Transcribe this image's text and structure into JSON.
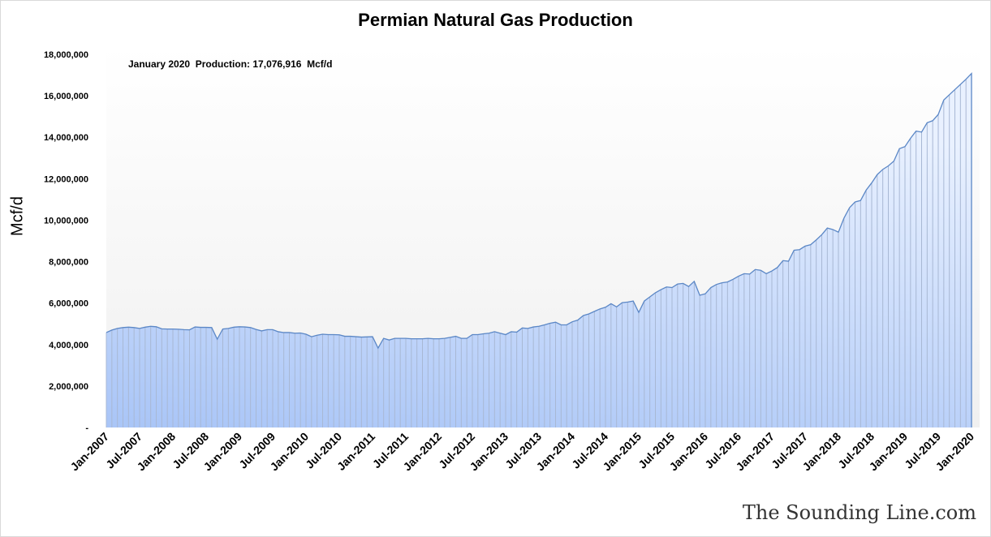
{
  "chart_data": {
    "type": "area",
    "title": "Permian Natural Gas Production",
    "ylabel": "Mcf/d",
    "xlabel": "",
    "annotation": "January 2020  Production: 17,076,916  Mcf/d",
    "ylim": [
      0,
      18000000
    ],
    "yticks": [
      "-",
      "2,000,000",
      "4,000,000",
      "6,000,000",
      "8,000,000",
      "10,000,000",
      "12,000,000",
      "14,000,000",
      "16,000,000",
      "18,000,000"
    ],
    "xticks": [
      "Jan-2007",
      "Jul-2007",
      "Jan-2008",
      "Jul-2008",
      "Jan-2009",
      "Jul-2009",
      "Jan-2010",
      "Jul-2010",
      "Jan-2011",
      "Jul-2011",
      "Jan-2012",
      "Jul-2012",
      "Jan-2013",
      "Jul-2013",
      "Jan-2014",
      "Jul-2014",
      "Jan-2015",
      "Jul-2015",
      "Jan-2016",
      "Jul-2016",
      "Jan-2017",
      "Jul-2017",
      "Jan-2018",
      "Jul-2018",
      "Jan-2019",
      "Jul-2019",
      "Jan-2020"
    ],
    "x_start": "Jan-2007",
    "x_end": "Jan-2020",
    "frequency": "monthly",
    "grid": false,
    "legend": "none",
    "colors": {
      "line": "#5b87c6",
      "fill_bottom": "#a9c5f7",
      "fill_top": "#e9f1ff"
    },
    "values": [
      4580000,
      4700000,
      4780000,
      4820000,
      4840000,
      4820000,
      4780000,
      4840000,
      4880000,
      4860000,
      4760000,
      4750000,
      4750000,
      4740000,
      4720000,
      4710000,
      4850000,
      4830000,
      4830000,
      4820000,
      4260000,
      4750000,
      4780000,
      4840000,
      4860000,
      4850000,
      4820000,
      4730000,
      4660000,
      4720000,
      4720000,
      4620000,
      4580000,
      4580000,
      4550000,
      4560000,
      4500000,
      4380000,
      4450000,
      4500000,
      4480000,
      4480000,
      4470000,
      4400000,
      4400000,
      4380000,
      4360000,
      4370000,
      4380000,
      3830000,
      4300000,
      4220000,
      4300000,
      4300000,
      4300000,
      4280000,
      4280000,
      4280000,
      4300000,
      4280000,
      4280000,
      4300000,
      4350000,
      4400000,
      4300000,
      4300000,
      4480000,
      4480000,
      4520000,
      4550000,
      4620000,
      4550000,
      4480000,
      4620000,
      4600000,
      4800000,
      4780000,
      4850000,
      4880000,
      4950000,
      5030000,
      5080000,
      4950000,
      4950000,
      5100000,
      5180000,
      5400000,
      5480000,
      5600000,
      5720000,
      5800000,
      5970000,
      5820000,
      6020000,
      6050000,
      6100000,
      5550000,
      6100000,
      6300000,
      6500000,
      6650000,
      6780000,
      6750000,
      6920000,
      6950000,
      6800000,
      7050000,
      6380000,
      6450000,
      6750000,
      6900000,
      6980000,
      7020000,
      7150000,
      7300000,
      7420000,
      7400000,
      7620000,
      7580000,
      7420000,
      7550000,
      7720000,
      8050000,
      8020000,
      8550000,
      8580000,
      8750000,
      8820000,
      9050000,
      9300000,
      9620000,
      9550000,
      9420000,
      10100000,
      10600000,
      10880000,
      10950000,
      11450000,
      11800000,
      12200000,
      12450000,
      12620000,
      12850000,
      13450000,
      13550000,
      13950000,
      14300000,
      14250000,
      14700000,
      14800000,
      15100000,
      15800000,
      16050000,
      16300000,
      16550000,
      16800000,
      17076916
    ]
  },
  "watermark": "The Sounding Line.com"
}
